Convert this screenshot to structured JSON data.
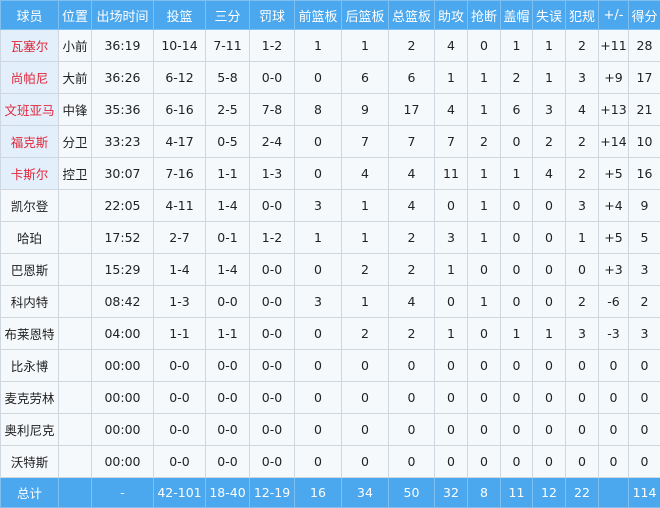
{
  "headers": [
    "球员",
    "位置",
    "出场时间",
    "投篮",
    "三分",
    "罚球",
    "前篮板",
    "后篮板",
    "总篮板",
    "助攻",
    "抢断",
    "盖帽",
    "失误",
    "犯规",
    "+/-",
    "得分"
  ],
  "players": [
    {
      "starter": true,
      "cells": [
        "瓦塞尔",
        "小前",
        "36:19",
        "10-14",
        "7-11",
        "1-2",
        "1",
        "1",
        "2",
        "4",
        "0",
        "1",
        "1",
        "2",
        "+11",
        "28"
      ]
    },
    {
      "starter": true,
      "cells": [
        "尚帕尼",
        "大前",
        "36:26",
        "6-12",
        "5-8",
        "0-0",
        "0",
        "6",
        "6",
        "1",
        "1",
        "2",
        "1",
        "3",
        "+9",
        "17"
      ]
    },
    {
      "starter": true,
      "cells": [
        "文班亚马",
        "中锋",
        "35:36",
        "6-16",
        "2-5",
        "7-8",
        "8",
        "9",
        "17",
        "4",
        "1",
        "6",
        "3",
        "4",
        "+13",
        "21"
      ]
    },
    {
      "starter": true,
      "cells": [
        "福克斯",
        "分卫",
        "33:23",
        "4-17",
        "0-5",
        "2-4",
        "0",
        "7",
        "7",
        "7",
        "2",
        "0",
        "2",
        "2",
        "+14",
        "10"
      ]
    },
    {
      "starter": true,
      "cells": [
        "卡斯尔",
        "控卫",
        "30:07",
        "7-16",
        "1-1",
        "1-3",
        "0",
        "4",
        "4",
        "11",
        "1",
        "1",
        "4",
        "2",
        "+5",
        "16"
      ]
    },
    {
      "starter": false,
      "cells": [
        "凯尔登",
        "",
        "22:05",
        "4-11",
        "1-4",
        "0-0",
        "3",
        "1",
        "4",
        "0",
        "1",
        "0",
        "0",
        "3",
        "+4",
        "9"
      ]
    },
    {
      "starter": false,
      "cells": [
        "哈珀",
        "",
        "17:52",
        "2-7",
        "0-1",
        "1-2",
        "1",
        "1",
        "2",
        "3",
        "1",
        "0",
        "0",
        "1",
        "+5",
        "5"
      ]
    },
    {
      "starter": false,
      "cells": [
        "巴恩斯",
        "",
        "15:29",
        "1-4",
        "1-4",
        "0-0",
        "0",
        "2",
        "2",
        "1",
        "0",
        "0",
        "0",
        "0",
        "+3",
        "3"
      ]
    },
    {
      "starter": false,
      "cells": [
        "科内特",
        "",
        "08:42",
        "1-3",
        "0-0",
        "0-0",
        "3",
        "1",
        "4",
        "0",
        "1",
        "0",
        "0",
        "2",
        "-6",
        "2"
      ]
    },
    {
      "starter": false,
      "cells": [
        "布莱恩特",
        "",
        "04:00",
        "1-1",
        "1-1",
        "0-0",
        "0",
        "2",
        "2",
        "1",
        "0",
        "1",
        "1",
        "3",
        "-3",
        "3"
      ]
    },
    {
      "starter": false,
      "cells": [
        "比永博",
        "",
        "00:00",
        "0-0",
        "0-0",
        "0-0",
        "0",
        "0",
        "0",
        "0",
        "0",
        "0",
        "0",
        "0",
        "0",
        "0"
      ]
    },
    {
      "starter": false,
      "cells": [
        "麦克劳林",
        "",
        "00:00",
        "0-0",
        "0-0",
        "0-0",
        "0",
        "0",
        "0",
        "0",
        "0",
        "0",
        "0",
        "0",
        "0",
        "0"
      ]
    },
    {
      "starter": false,
      "cells": [
        "奥利尼克",
        "",
        "00:00",
        "0-0",
        "0-0",
        "0-0",
        "0",
        "0",
        "0",
        "0",
        "0",
        "0",
        "0",
        "0",
        "0",
        "0"
      ]
    },
    {
      "starter": false,
      "cells": [
        "沃特斯",
        "",
        "00:00",
        "0-0",
        "0-0",
        "0-0",
        "0",
        "0",
        "0",
        "0",
        "0",
        "0",
        "0",
        "0",
        "0",
        "0"
      ]
    }
  ],
  "total": [
    "总计",
    "",
    "-",
    "42-101",
    "18-40",
    "12-19",
    "16",
    "34",
    "50",
    "32",
    "8",
    "11",
    "12",
    "22",
    "",
    "114"
  ],
  "colors": {
    "header_bg": "#4ba7ee",
    "starter_name": "#e0283c"
  }
}
